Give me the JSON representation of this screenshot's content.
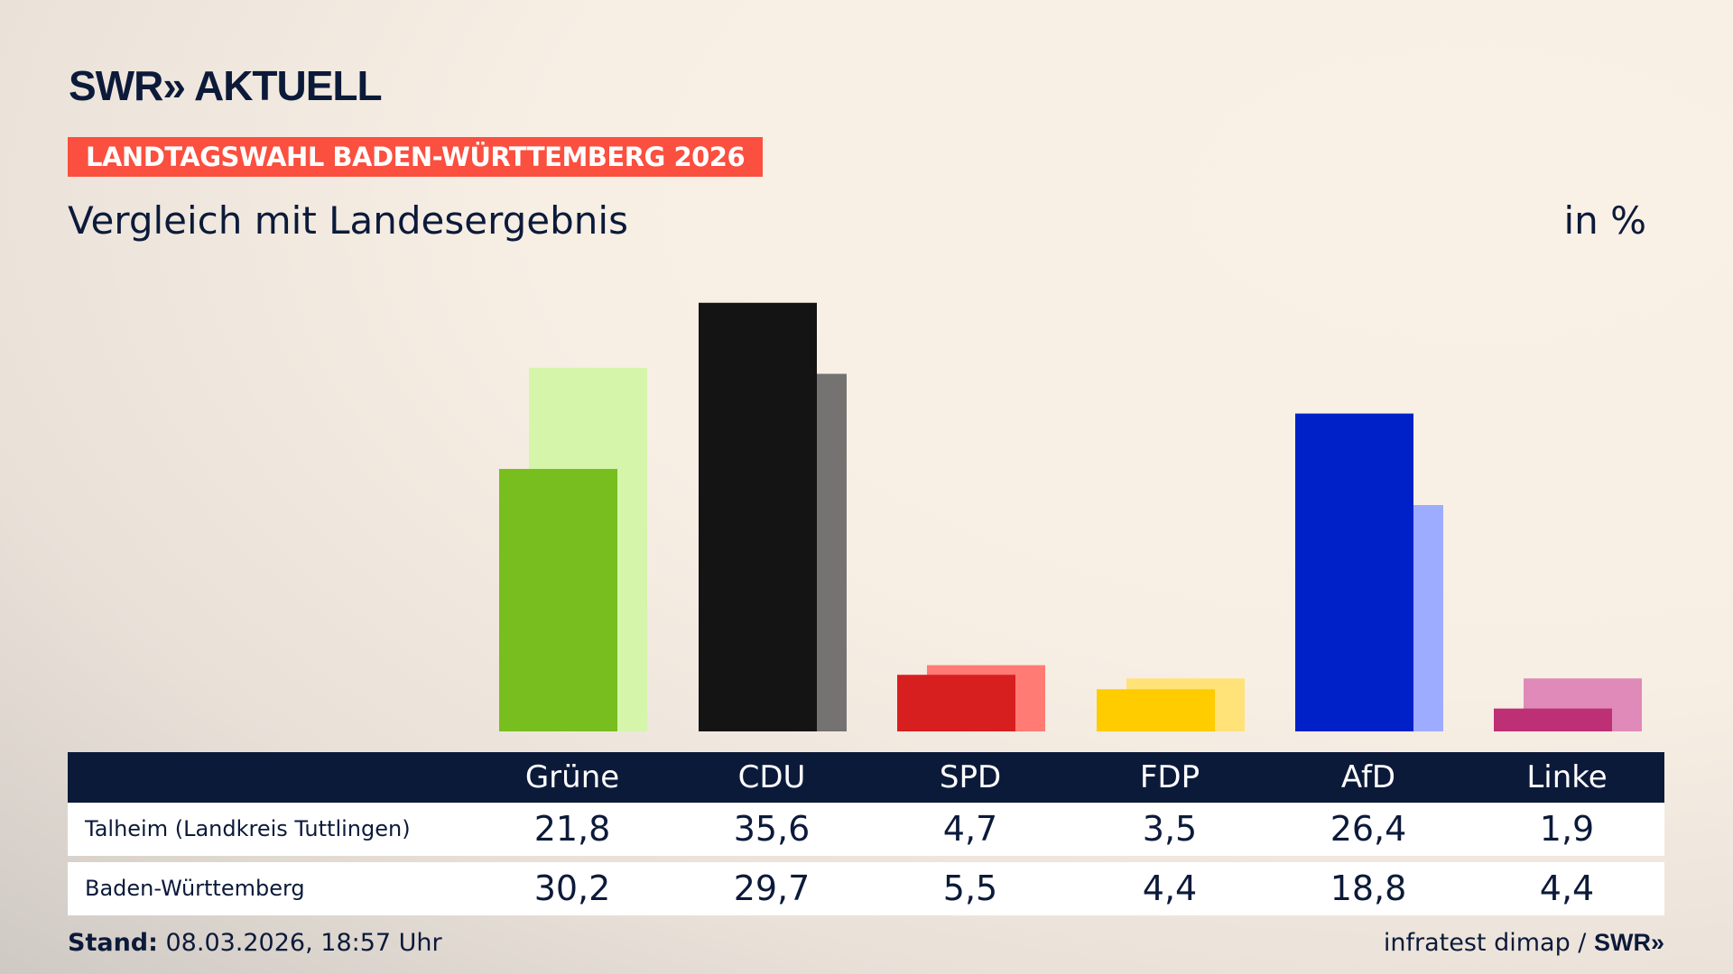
{
  "header": {
    "logo": "SWR» AKTUELL",
    "banner": "LANDTAGSWAHL BADEN-WÜRTTEMBERG 2026",
    "subtitle": "Vergleich mit Landesergebnis",
    "unit": "in %"
  },
  "chart_data": {
    "type": "bar",
    "categories": [
      "Grüne",
      "CDU",
      "SPD",
      "FDP",
      "AfD",
      "Linke"
    ],
    "series": [
      {
        "name": "Talheim (Landkreis Tuttlingen)",
        "values": [
          21.8,
          35.6,
          4.7,
          3.5,
          26.4,
          1.9
        ],
        "colors": [
          "#78be1e",
          "#141414",
          "#d81f1f",
          "#ffcc00",
          "#0021c8",
          "#be3075"
        ]
      },
      {
        "name": "Baden-Württemberg",
        "values": [
          30.2,
          29.7,
          5.5,
          4.4,
          18.8,
          4.4
        ],
        "colors": [
          "#d5f5ab",
          "#747371",
          "#ff7b73",
          "#ffe278",
          "#9eacff",
          "#df8ab8"
        ]
      }
    ],
    "value_labels": [
      [
        "21,8",
        "35,6",
        "4,7",
        "3,5",
        "26,4",
        "1,9"
      ],
      [
        "30,2",
        "29,7",
        "5,5",
        "4,4",
        "18,8",
        "4,4"
      ]
    ],
    "ylim": [
      0,
      40
    ],
    "grid": false
  },
  "footer": {
    "stand_label": "Stand:",
    "stand_value": " 08.03.2026, 18:57 Uhr",
    "source": "infratest dimap / ",
    "source_logo": "SWR»"
  }
}
